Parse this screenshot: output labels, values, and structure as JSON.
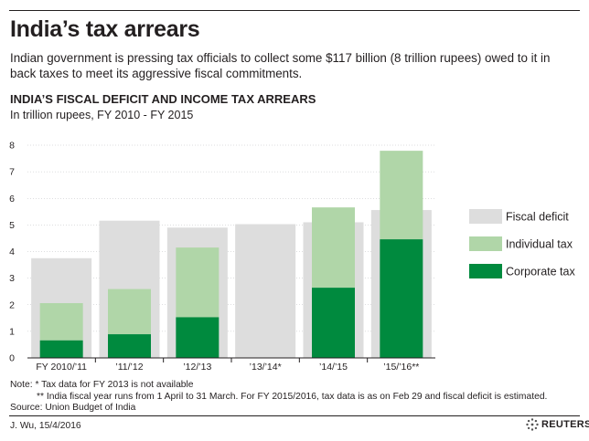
{
  "headline": "India’s tax arrears",
  "intro": "Indian government is pressing tax officials to collect some $117 billion (8 trillion rupees) owed to it in back taxes to meet its aggressive fiscal commitments.",
  "chart_data": {
    "type": "bar",
    "title": "INDIA’S FISCAL DEFICIT AND INCOME TAX ARREARS",
    "subtitle": "In trillion rupees, FY 2010 - FY 2015",
    "categories": [
      "FY 2010/’11",
      "’11/’12",
      "’12/’13",
      "’13/’14*",
      "’14/’15",
      "’15/’16**"
    ],
    "ylim": [
      0,
      8
    ],
    "yticks": [
      0,
      1,
      2,
      3,
      4,
      5,
      6,
      7,
      8
    ],
    "xlabel": "",
    "ylabel": "",
    "grid": true,
    "legend_position": "right",
    "series": [
      {
        "name": "Fiscal deficit",
        "color": "#dddddd",
        "values": [
          3.75,
          5.16,
          4.9,
          5.03,
          5.1,
          5.56
        ]
      },
      {
        "name": "Individual tax",
        "color": "#b0d6a8",
        "values": [
          1.4,
          1.7,
          2.62,
          null,
          3.02,
          3.33
        ]
      },
      {
        "name": "Corporate tax",
        "color": "#008a3e",
        "values": [
          0.66,
          0.89,
          1.53,
          null,
          2.64,
          4.46
        ]
      }
    ]
  },
  "notes": {
    "line1": "Note: * Tax data for FY 2013 is not available",
    "line2": "** India fiscal year runs from 1 April to 31 March. For FY 2015/2016, tax data is as on Feb 29 and  fiscal deficit is estimated."
  },
  "source": "Source: Union Budget of India",
  "credit": "J. Wu,  15/4/2016",
  "logo_text": "REUTERS"
}
